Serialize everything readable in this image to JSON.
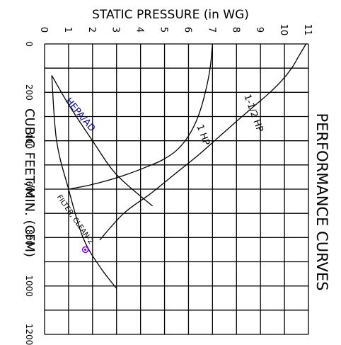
{
  "chart_data": {
    "type": "line",
    "title": "PERFORMANCE CURVES",
    "xlabel": "STATIC PRESSURE (in WG)",
    "ylabel": "CUBIC FEET/MIN. (CFM)",
    "x_ticks": [
      "0",
      "1",
      "2",
      "3",
      "4",
      "5",
      "6",
      "7",
      "8",
      "9",
      "10",
      "11"
    ],
    "y_ticks": [
      "0",
      "200",
      "400",
      "600",
      "800",
      "1000",
      "1200"
    ],
    "xlim": [
      0,
      11
    ],
    "ylim": [
      0,
      1200
    ],
    "grid": true,
    "series": [
      {
        "name": "1 HP",
        "color": "#000000",
        "x": [
          7.0,
          6.9,
          6.7,
          6.4,
          6.0,
          5.5,
          4.9,
          4.2,
          3.4,
          2.6,
          1.8,
          1.0
        ],
        "y": [
          0,
          100,
          200,
          300,
          380,
          440,
          480,
          510,
          540,
          565,
          585,
          600
        ]
      },
      {
        "name": "1-1/2 HP",
        "color": "#000000",
        "x": [
          10.9,
          10.6,
          10.3,
          9.9,
          9.4,
          8.7,
          8.0,
          7.2,
          6.4,
          5.4,
          4.4,
          3.3,
          2.3
        ],
        "y": [
          0,
          50,
          100,
          150,
          200,
          260,
          320,
          390,
          460,
          540,
          620,
          700,
          810
        ]
      },
      {
        "name": "HEPA/AD",
        "color": "#0000aa",
        "x": [
          0.3,
          1.0,
          2.0,
          3.0,
          4.5
        ],
        "y": [
          130,
          250,
          400,
          540,
          670
        ]
      },
      {
        "name": "FILTER, CLEAN-2",
        "color": "#000000",
        "x": [
          0.3,
          0.5,
          1.0,
          1.6,
          2.3,
          3.0
        ],
        "y": [
          130,
          400,
          600,
          800,
          920,
          1010
        ]
      }
    ],
    "labels": [
      {
        "text": "1 HP",
        "x": 6.5,
        "y": 380,
        "rotation": 70,
        "color": "#000000"
      },
      {
        "text": "1-1/2 HP",
        "x": 8.6,
        "y": 290,
        "rotation": 70,
        "color": "#000000"
      },
      {
        "text": "HEPA/AD",
        "x": 1.4,
        "y": 300,
        "rotation": 50,
        "color": "#0000aa"
      },
      {
        "text": "FILTER, CLEAN-2",
        "x": 1.2,
        "y": 730,
        "rotation": 55,
        "color": "#000000"
      }
    ],
    "marker": {
      "x": 1.7,
      "y": 850,
      "color": "#8000ff"
    }
  }
}
